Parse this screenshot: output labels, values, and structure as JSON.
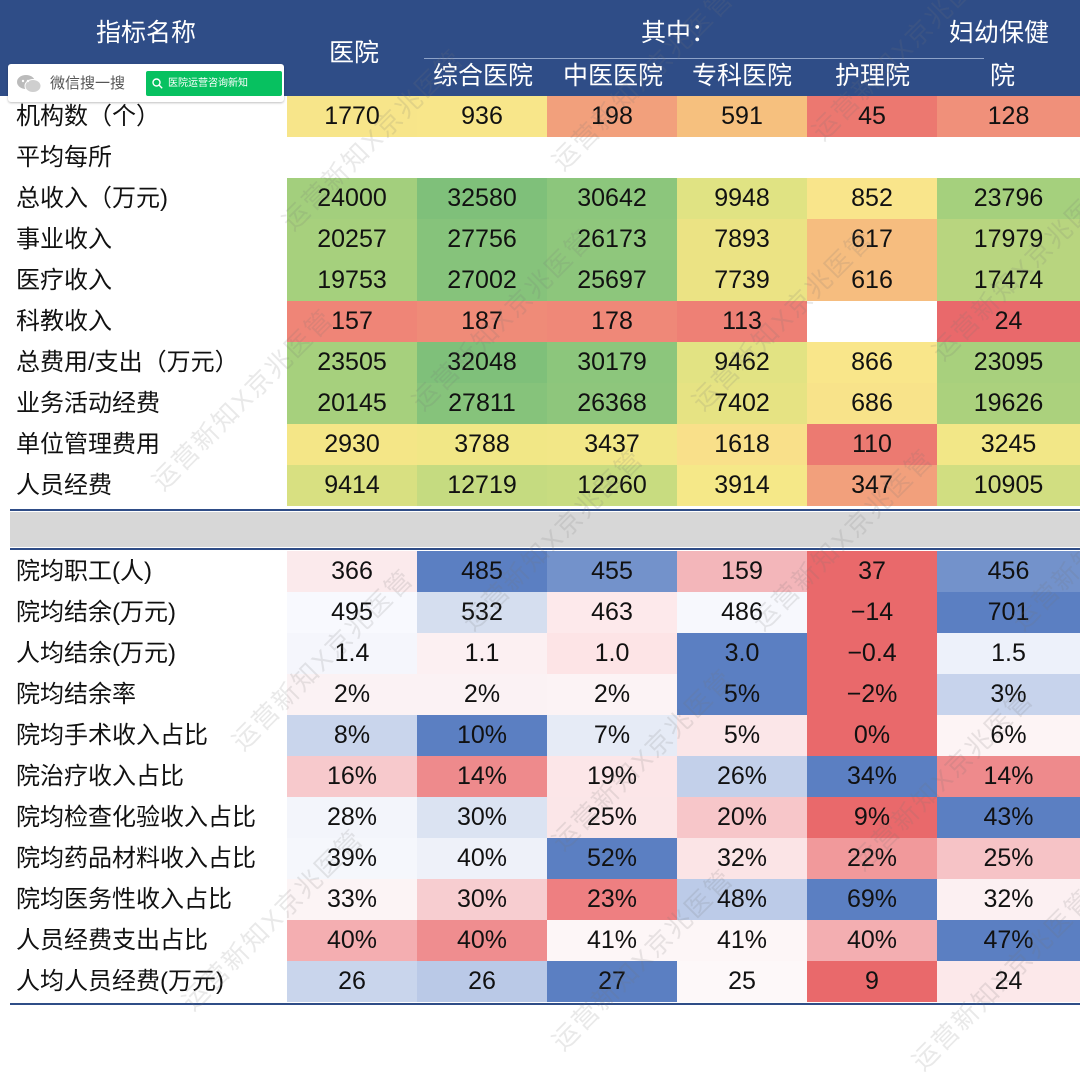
{
  "header": {
    "indicator_name": "指标名称",
    "hospital": "医院",
    "of_which": "其中：",
    "general_hospital": "综合医院",
    "tcm_hospital": "中医医院",
    "specialty_hospital": "专科医院",
    "nursing_home": "护理院",
    "mch_line1": "妇幼保健",
    "mch_line2": "院"
  },
  "wechat_widget": {
    "search_label": "微信搜一搜",
    "account": "医院运营咨询新知"
  },
  "watermark_text": "运营新知X京兆医管",
  "chart_data": {
    "type": "table",
    "columns": [
      "医院",
      "综合医院",
      "中医医院",
      "专科医院",
      "护理院",
      "妇幼保健院"
    ],
    "sections": [
      {
        "colormap": "green-yellow-red",
        "rows": [
          {
            "label": "机构数（个）",
            "values": [
              "1770",
              "936",
              "198",
              "591",
              "45",
              "128"
            ]
          },
          {
            "label": "平均每所",
            "values": [
              "",
              "",
              "",
              "",
              "",
              ""
            ]
          },
          {
            "label": "总收入（万元)",
            "values": [
              "24000",
              "32580",
              "30642",
              "9948",
              "852",
              "23796"
            ]
          },
          {
            "label": "事业收入",
            "values": [
              "20257",
              "27756",
              "26173",
              "7893",
              "617",
              "17979"
            ]
          },
          {
            "label": "医疗收入",
            "values": [
              "19753",
              "27002",
              "25697",
              "7739",
              "616",
              "17474"
            ]
          },
          {
            "label": "科教收入",
            "values": [
              "157",
              "187",
              "178",
              "113",
              "",
              "24"
            ]
          },
          {
            "label": "总费用/支出（万元）",
            "values": [
              "23505",
              "32048",
              "30179",
              "9462",
              "866",
              "23095"
            ]
          },
          {
            "label": "业务活动经费",
            "values": [
              "20145",
              "27811",
              "26368",
              "7402",
              "686",
              "19626"
            ]
          },
          {
            "label": "单位管理费用",
            "values": [
              "2930",
              "3788",
              "3437",
              "1618",
              "110",
              "3245"
            ]
          },
          {
            "label": "人员经费",
            "values": [
              "9414",
              "12719",
              "12260",
              "3914",
              "347",
              "10905"
            ]
          }
        ]
      },
      {
        "colormap": "blue-white-red",
        "rows": [
          {
            "label": "院均职工(人)",
            "values": [
              "366",
              "485",
              "455",
              "159",
              "37",
              "456"
            ]
          },
          {
            "label": "院均结余(万元)",
            "values": [
              "495",
              "532",
              "463",
              "486",
              "−14",
              "701"
            ]
          },
          {
            "label": "人均结余(万元)",
            "values": [
              "1.4",
              "1.1",
              "1.0",
              "3.0",
              "−0.4",
              "1.5"
            ]
          },
          {
            "label": "院均结余率",
            "values": [
              "2%",
              "2%",
              "2%",
              "5%",
              "−2%",
              "3%"
            ]
          },
          {
            "label": "院均手术收入占比",
            "values": [
              "8%",
              "10%",
              "7%",
              "5%",
              "0%",
              "6%"
            ]
          },
          {
            "label": "院治疗收入占比",
            "values": [
              "16%",
              "14%",
              "19%",
              "26%",
              "34%",
              "14%"
            ]
          },
          {
            "label": "院均检查化验收入占比",
            "values": [
              "28%",
              "30%",
              "25%",
              "20%",
              "9%",
              "43%"
            ]
          },
          {
            "label": "院均药品材料收入占比",
            "values": [
              "39%",
              "40%",
              "52%",
              "32%",
              "22%",
              "25%"
            ]
          },
          {
            "label": "院均医务性收入占比",
            "values": [
              "33%",
              "30%",
              "23%",
              "48%",
              "69%",
              "32%"
            ]
          },
          {
            "label": "人员经费支出占比",
            "values": [
              "40%",
              "40%",
              "41%",
              "41%",
              "40%",
              "47%"
            ]
          },
          {
            "label": "人均人员经费(万元)",
            "values": [
              "26",
              "26",
              "27",
              "25",
              "9",
              "24"
            ]
          }
        ]
      }
    ],
    "cell_colors": [
      [
        "#f7e58a",
        "#f8e68a",
        "#f2a07c",
        "#f6c07e",
        "#ec7870",
        "#f0907a"
      ],
      [
        null,
        null,
        null,
        null,
        null,
        null
      ],
      [
        "#a3cf7d",
        "#7fc07a",
        "#8cc67c",
        "#e0e383",
        "#f9e58b",
        "#a5d07d"
      ],
      [
        "#a7d07d",
        "#86c37b",
        "#8fc77c",
        "#ebe384",
        "#f6bd7f",
        "#b8d57f"
      ],
      [
        "#a5d07d",
        "#86c37b",
        "#8dc67c",
        "#ebe384",
        "#f6bd7f",
        "#b8d57f"
      ],
      [
        "#ef8577",
        "#ef8b78",
        "#ef8878",
        "#ee8075",
        null,
        "#e9696b"
      ],
      [
        "#a6d07d",
        "#7fc07a",
        "#8cc67c",
        "#e2e383",
        "#f9e68a",
        "#a8d07d"
      ],
      [
        "#a6d07d",
        "#86c37b",
        "#8ec67c",
        "#e6e383",
        "#f8e38a",
        "#abd17d"
      ],
      [
        "#f4e687",
        "#f1e786",
        "#f2e787",
        "#f9e08a",
        "#ec7a71",
        "#f2e787"
      ],
      [
        "#d8e081",
        "#c5db80",
        "#c8dc80",
        "#f5e888",
        "#f2a07c",
        "#d1de81"
      ],
      [
        "#fbeaec",
        "#5b7fc2",
        "#7392cb",
        "#f3b6ba",
        "#e9696b",
        "#7392cb"
      ],
      [
        "#f8f9fe",
        "#d5deef",
        "#fde9eb",
        "#f7f8fd",
        "#e9696b",
        "#5b7fc2"
      ],
      [
        "#f5f6fc",
        "#fcf0f2",
        "#fde4e6",
        "#5b7fc2",
        "#e9696b",
        "#edf1fa"
      ],
      [
        "#fbf2f4",
        "#fbf2f4",
        "#fcf3f5",
        "#5b7fc2",
        "#e9696b",
        "#c7d3ec"
      ],
      [
        "#c9d5ec",
        "#5b7fc2",
        "#e6ebf6",
        "#fbe6e8",
        "#e9696b",
        "#fdf4f5"
      ],
      [
        "#f7c9cc",
        "#ee8a8c",
        "#fce6e8",
        "#c3d0ea",
        "#5b7fc2",
        "#ee8a8c"
      ],
      [
        "#f3f5fb",
        "#dbe3f2",
        "#fbe6e8",
        "#f7c6c9",
        "#e9696b",
        "#5b7fc2"
      ],
      [
        "#f5f7fc",
        "#eef1f9",
        "#5b7fc2",
        "#fbe4e6",
        "#f1999b",
        "#f6c3c6"
      ],
      [
        "#fcf4f5",
        "#f7cdd0",
        "#ee7f81",
        "#bccbe8",
        "#5b7fc2",
        "#fcf0f2"
      ],
      [
        "#f4aeb1",
        "#ef8d8f",
        "#fdf6f7",
        "#fdf6f7",
        "#f3aeb1",
        "#5b7fc2"
      ],
      [
        "#c9d5ec",
        "#bac9e7",
        "#5b7fc2",
        "#fdf8f9",
        "#e9696b",
        "#fce8ea"
      ]
    ]
  }
}
